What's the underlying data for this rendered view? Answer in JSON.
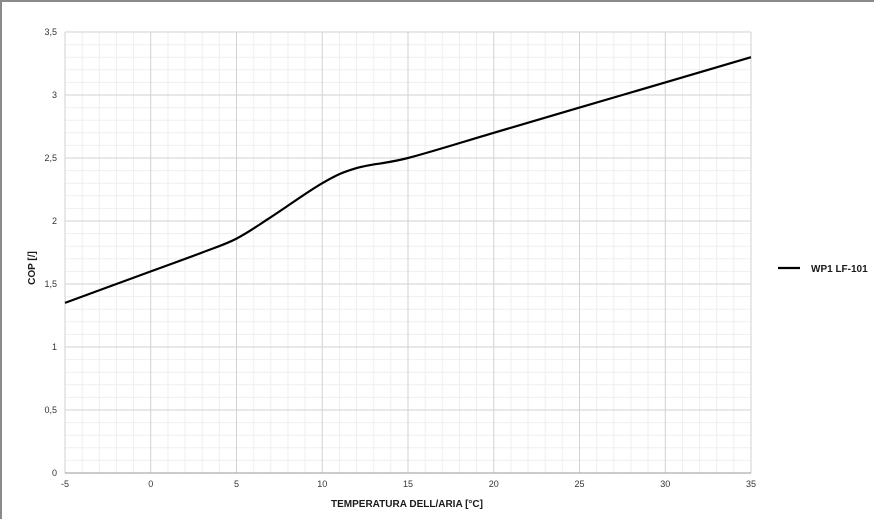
{
  "chart_data": {
    "type": "line",
    "xlabel": "TEMPERATURA DELL/ARIA [°C]",
    "ylabel": "COP [/]",
    "xlim": [
      -5,
      35
    ],
    "ylim": [
      0,
      3.5
    ],
    "x_ticks": [
      "-5",
      "0",
      "5",
      "10",
      "15",
      "20",
      "25",
      "30",
      "35"
    ],
    "y_ticks": [
      "0",
      "0,5",
      "1",
      "1,5",
      "2",
      "2,5",
      "3",
      "3,5"
    ],
    "grid": true,
    "legend_position": "right",
    "series": [
      {
        "name": "WP1 LF-101",
        "color": "#000000",
        "x": [
          -5,
          0,
          3,
          5,
          7,
          10,
          12,
          15,
          20,
          25,
          30,
          35
        ],
        "y": [
          1.35,
          1.6,
          1.75,
          1.86,
          2.03,
          2.3,
          2.42,
          2.5,
          2.7,
          2.9,
          3.1,
          3.3
        ]
      }
    ]
  }
}
